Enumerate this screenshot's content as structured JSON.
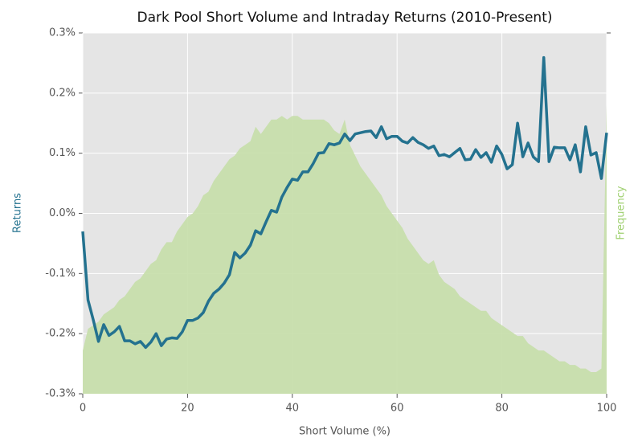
{
  "chart_data": {
    "type": "line",
    "title": "Dark Pool Short Volume and Intraday Returns (2010-Present)",
    "xlabel": "Short Volume (%)",
    "ylabel": "Returns",
    "y2label": "Frequency",
    "x": [
      0,
      1,
      2,
      3,
      4,
      5,
      6,
      7,
      8,
      9,
      10,
      11,
      12,
      13,
      14,
      15,
      16,
      17,
      18,
      19,
      20,
      21,
      22,
      23,
      24,
      25,
      26,
      27,
      28,
      29,
      30,
      31,
      32,
      33,
      34,
      35,
      36,
      37,
      38,
      39,
      40,
      41,
      42,
      43,
      44,
      45,
      46,
      47,
      48,
      49,
      50,
      51,
      52,
      53,
      54,
      55,
      56,
      57,
      58,
      59,
      60,
      61,
      62,
      63,
      64,
      65,
      66,
      67,
      68,
      69,
      70,
      71,
      72,
      73,
      74,
      75,
      76,
      77,
      78,
      79,
      80,
      81,
      82,
      83,
      84,
      85,
      86,
      87,
      88,
      89,
      90,
      91,
      92,
      93,
      94,
      95,
      96,
      97,
      98,
      99,
      100
    ],
    "series": [
      {
        "name": "Frequency",
        "type": "area",
        "axis": "y2",
        "color": "#c5dea8",
        "values": [
          0.12,
          0.18,
          0.19,
          0.2,
          0.22,
          0.23,
          0.24,
          0.26,
          0.27,
          0.29,
          0.31,
          0.32,
          0.34,
          0.36,
          0.37,
          0.4,
          0.42,
          0.42,
          0.45,
          0.47,
          0.49,
          0.5,
          0.52,
          0.55,
          0.56,
          0.59,
          0.61,
          0.63,
          0.65,
          0.66,
          0.68,
          0.69,
          0.7,
          0.74,
          0.72,
          0.74,
          0.76,
          0.76,
          0.77,
          0.76,
          0.77,
          0.77,
          0.76,
          0.76,
          0.76,
          0.76,
          0.76,
          0.75,
          0.73,
          0.72,
          0.76,
          0.69,
          0.66,
          0.63,
          0.61,
          0.59,
          0.57,
          0.55,
          0.52,
          0.5,
          0.48,
          0.46,
          0.43,
          0.41,
          0.39,
          0.37,
          0.36,
          0.37,
          0.33,
          0.31,
          0.3,
          0.29,
          0.27,
          0.26,
          0.25,
          0.24,
          0.23,
          0.23,
          0.21,
          0.2,
          0.19,
          0.18,
          0.17,
          0.16,
          0.16,
          0.14,
          0.13,
          0.12,
          0.12,
          0.11,
          0.1,
          0.09,
          0.09,
          0.08,
          0.08,
          0.07,
          0.07,
          0.06,
          0.06,
          0.07,
          0.8
        ]
      },
      {
        "name": "Returns",
        "type": "line",
        "axis": "y",
        "color": "#24728f",
        "values": [
          -0.03,
          -0.144,
          -0.177,
          -0.213,
          -0.185,
          -0.203,
          -0.197,
          -0.188,
          -0.212,
          -0.212,
          -0.217,
          -0.213,
          -0.223,
          -0.214,
          -0.2,
          -0.22,
          -0.209,
          -0.207,
          -0.208,
          -0.197,
          -0.178,
          -0.178,
          -0.174,
          -0.165,
          -0.146,
          -0.133,
          -0.126,
          -0.116,
          -0.102,
          -0.065,
          -0.074,
          -0.066,
          -0.053,
          -0.029,
          -0.034,
          -0.014,
          0.005,
          0.002,
          0.027,
          0.043,
          0.057,
          0.055,
          0.069,
          0.069,
          0.083,
          0.1,
          0.101,
          0.116,
          0.114,
          0.117,
          0.132,
          0.121,
          0.132,
          0.134,
          0.136,
          0.137,
          0.126,
          0.144,
          0.124,
          0.128,
          0.128,
          0.12,
          0.117,
          0.126,
          0.118,
          0.114,
          0.108,
          0.112,
          0.096,
          0.098,
          0.094,
          0.101,
          0.108,
          0.089,
          0.09,
          0.106,
          0.093,
          0.101,
          0.085,
          0.112,
          0.098,
          0.074,
          0.081,
          0.15,
          0.094,
          0.117,
          0.094,
          0.086,
          0.259,
          0.086,
          0.11,
          0.109,
          0.109,
          0.089,
          0.114,
          0.069,
          0.144,
          0.097,
          0.101,
          0.058,
          0.134
        ]
      }
    ],
    "xlim": [
      0,
      100
    ],
    "xticks": [
      0,
      20,
      40,
      60,
      80,
      100
    ],
    "ylim": [
      -0.3,
      0.3
    ],
    "yticks": [
      {
        "value": -0.3,
        "label": "-0.3%"
      },
      {
        "value": -0.2,
        "label": "-0.2%"
      },
      {
        "value": -0.1,
        "label": "-0.1%"
      },
      {
        "value": 0,
        "label": "0.0%"
      },
      {
        "value": 0.1,
        "label": "0.1%"
      },
      {
        "value": 0.2,
        "label": "0.2%"
      },
      {
        "value": 0.3,
        "label": "0.3%"
      }
    ],
    "y2lim": [
      0,
      1
    ],
    "grid": true
  }
}
